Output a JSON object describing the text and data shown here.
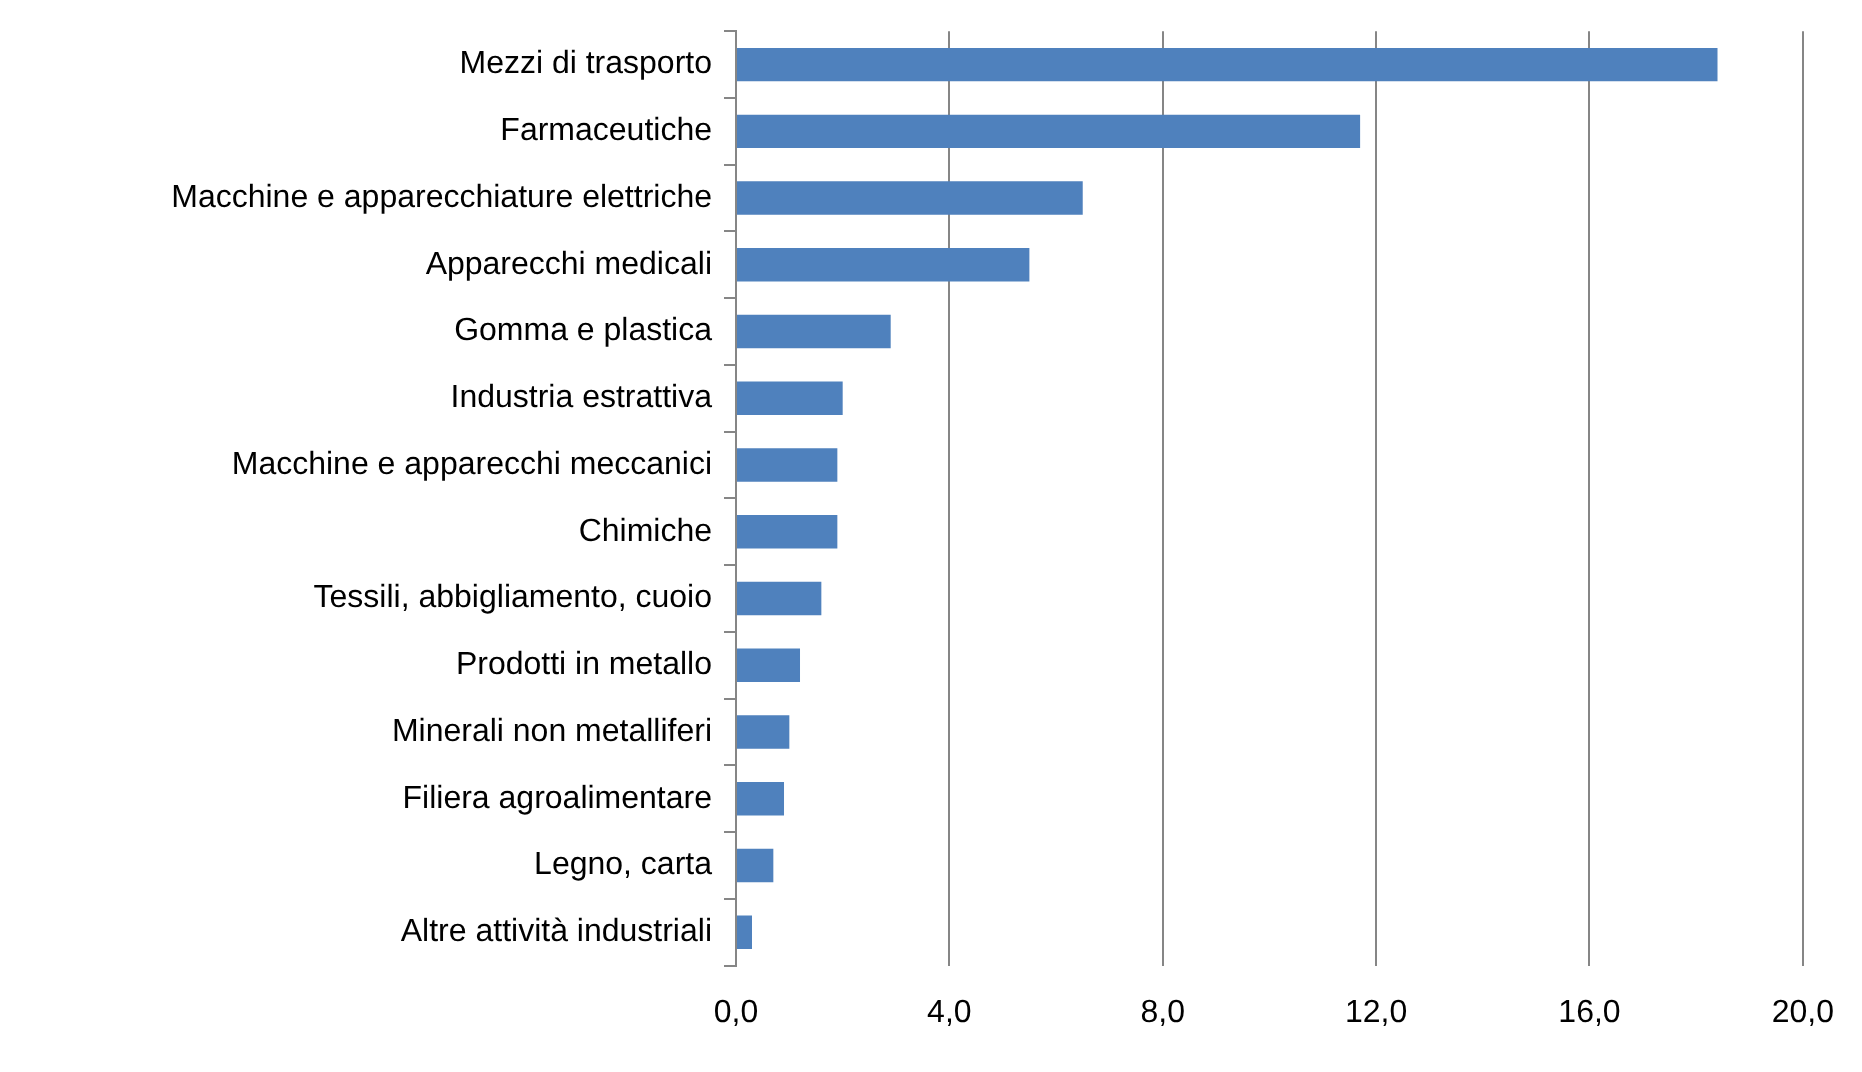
{
  "chart_data": {
    "type": "bar",
    "orientation": "horizontal",
    "categories": [
      "Mezzi di trasporto",
      "Farmaceutiche",
      "Macchine e apparecchiature elettriche",
      "Apparecchi medicali",
      "Gomma e plastica",
      "Industria estrattiva",
      "Macchine e apparecchi meccanici",
      "Chimiche",
      "Tessili, abbigliamento, cuoio",
      "Prodotti in metallo",
      "Minerali non metalliferi",
      "Filiera agroalimentare",
      "Legno, carta",
      "Altre attività industriali"
    ],
    "values": [
      18.4,
      11.7,
      6.5,
      5.5,
      2.9,
      2.0,
      1.9,
      1.9,
      1.6,
      1.2,
      1.0,
      0.9,
      0.7,
      0.3
    ],
    "color": "#4f81bd",
    "xlim": [
      0,
      20
    ],
    "xticks": [
      {
        "value": 0,
        "label": "0,0"
      },
      {
        "value": 4,
        "label": "4,0"
      },
      {
        "value": 8,
        "label": "8,0"
      },
      {
        "value": 12,
        "label": "12,0"
      },
      {
        "value": 16,
        "label": "16,0"
      },
      {
        "value": 20,
        "label": "20,0"
      }
    ],
    "grid": "x",
    "legend": false
  }
}
